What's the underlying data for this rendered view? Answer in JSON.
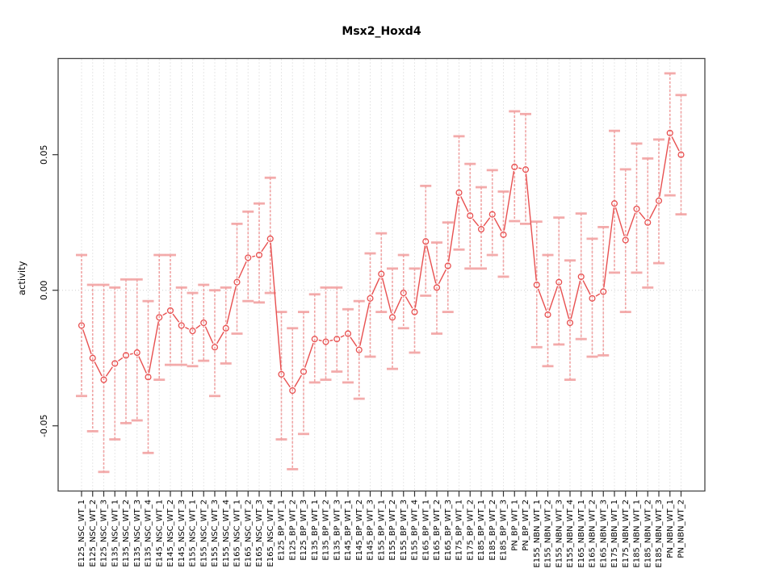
{
  "title": "Msx2_Hoxd4",
  "y_axis": {
    "label": "activity",
    "tick_labels": [
      "0.05",
      "0.00",
      "-0.05"
    ]
  },
  "colors": {
    "series": "#e85050",
    "error_bar": "#ef8f8f",
    "error_cap": "#f2a2a2",
    "grid": "#cfcfcf",
    "box": "#444444",
    "tick": "#333333",
    "text": "#000000",
    "background": "#ffffff"
  },
  "chart_data": {
    "type": "line",
    "title": "Msx2_Hoxd4",
    "xlabel": "",
    "ylabel": "activity",
    "ylim": [
      -0.074,
      0.0855
    ],
    "yticks": [
      0.05,
      0.0,
      -0.05
    ],
    "ytick_labels": [
      "0.05",
      "0.00",
      "-0.05"
    ],
    "legend": "none",
    "marker": "open-circle",
    "error_bars": true,
    "grid": {
      "vertical_per_category": true,
      "horizontal_at_zero": true,
      "style": "dotted"
    },
    "x_tick_label_rotation": 90,
    "categories": [
      "E125_NSC_WT_1",
      "E125_NSC_WT_2",
      "E125_NSC_WT_3",
      "E135_NSC_WT_1",
      "E135_NSC_WT_2",
      "E135_NSC_WT_3",
      "E135_NSC_WT_4",
      "E145_NSC_WT_1",
      "E145_NSC_WT_2",
      "E145_NSC_WT_3",
      "E155_NSC_WT_1",
      "E155_NSC_WT_2",
      "E155_NSC_WT_3",
      "E155_NSC_WT_4",
      "E165_NSC_WT_1",
      "E165_NSC_WT_2",
      "E165_NSC_WT_3",
      "E165_NSC_WT_4",
      "E125_BP_WT_1",
      "E125_BP_WT_2",
      "E125_BP_WT_3",
      "E135_BP_WT_1",
      "E135_BP_WT_2",
      "E135_BP_WT_3",
      "E145_BP_WT_1",
      "E145_BP_WT_2",
      "E145_BP_WT_3",
      "E155_BP_WT_1",
      "E155_BP_WT_2",
      "E155_BP_WT_3",
      "E155_BP_WT_4",
      "E165_BP_WT_1",
      "E165_BP_WT_2",
      "E165_BP_WT_3",
      "E175_BP_WT_1",
      "E175_BP_WT_2",
      "E185_BP_WT_1",
      "E185_BP_WT_2",
      "E185_BP_WT_3",
      "PN_BP_WT_1",
      "PN_BP_WT_2",
      "E155_NBN_WT_1",
      "E155_NBN_WT_2",
      "E155_NBN_WT_3",
      "E155_NBN_WT_4",
      "E165_NBN_WT_1",
      "E165_NBN_WT_2",
      "E165_NBN_WT_3",
      "E175_NBN_WT_1",
      "E175_NBN_WT_2",
      "E185_NBN_WT_1",
      "E185_NBN_WT_2",
      "E185_NBN_WT_3",
      "PN_NBN_WT_1",
      "PN_NBN_WT_2"
    ],
    "values": [
      -0.013,
      -0.025,
      -0.033,
      -0.027,
      -0.024,
      -0.023,
      -0.032,
      -0.01,
      -0.0075,
      -0.013,
      -0.015,
      -0.012,
      -0.021,
      -0.014,
      0.003,
      0.012,
      0.013,
      0.019,
      -0.031,
      -0.037,
      -0.03,
      -0.018,
      -0.019,
      -0.018,
      -0.016,
      -0.022,
      -0.003,
      0.006,
      -0.01,
      -0.001,
      -0.008,
      0.018,
      0.001,
      0.009,
      0.036,
      0.0275,
      0.0225,
      0.028,
      0.0205,
      0.0455,
      0.0445,
      0.002,
      -0.009,
      0.003,
      -0.012,
      0.005,
      -0.003,
      -0.0005,
      0.032,
      0.0185,
      0.03,
      0.025,
      0.033,
      0.058,
      0.05
    ],
    "error_low": [
      -0.039,
      -0.052,
      -0.067,
      -0.055,
      -0.049,
      -0.048,
      -0.06,
      -0.033,
      -0.0275,
      -0.0275,
      -0.028,
      -0.026,
      -0.039,
      -0.027,
      -0.016,
      -0.004,
      -0.0045,
      -0.001,
      -0.055,
      -0.066,
      -0.053,
      -0.034,
      -0.033,
      -0.03,
      -0.034,
      -0.04,
      -0.0245,
      -0.008,
      -0.029,
      -0.014,
      -0.023,
      -0.002,
      -0.016,
      -0.008,
      0.015,
      0.008,
      0.008,
      0.013,
      0.005,
      0.0255,
      0.0245,
      -0.021,
      -0.028,
      -0.02,
      -0.033,
      -0.018,
      -0.0245,
      -0.024,
      0.0065,
      -0.008,
      0.0065,
      0.001,
      0.01,
      0.035,
      0.028
    ],
    "error_high": [
      0.013,
      0.002,
      0.002,
      0.001,
      0.004,
      0.004,
      -0.004,
      0.013,
      0.013,
      0.001,
      -0.001,
      0.002,
      0.0,
      0.001,
      0.0245,
      0.029,
      0.032,
      0.0415,
      -0.008,
      -0.014,
      -0.008,
      -0.0015,
      0.001,
      0.001,
      -0.007,
      -0.004,
      0.0136,
      0.021,
      0.008,
      0.013,
      0.008,
      0.0385,
      0.0176,
      0.025,
      0.0568,
      0.0466,
      0.038,
      0.0443,
      0.0364,
      0.066,
      0.065,
      0.0253,
      0.013,
      0.0268,
      0.011,
      0.0283,
      0.019,
      0.0233,
      0.0588,
      0.0446,
      0.0541,
      0.0486,
      0.0556,
      0.08,
      0.072
    ]
  }
}
